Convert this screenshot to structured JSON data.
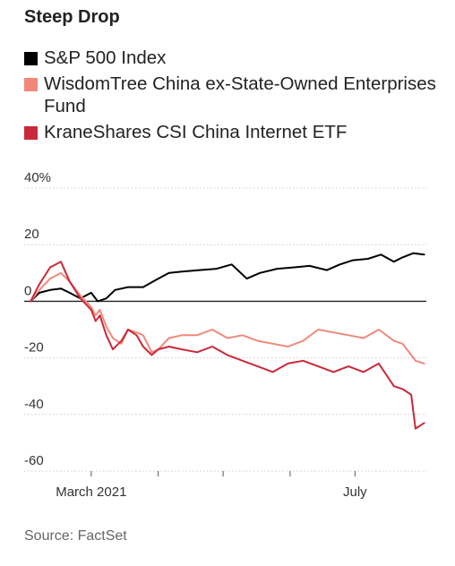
{
  "title": "Steep Drop",
  "source": "Source: FactSet",
  "colors": {
    "sp500": "#000000",
    "wisdomtree": "#f0897a",
    "kraneshares": "#c9293a",
    "grid": "#cccccc",
    "zero": "#222222"
  },
  "legend": [
    {
      "label": "S&P 500 Index",
      "color": "#000000"
    },
    {
      "label": "WisdomTree China ex-State-Owned Enterprises Fund",
      "color": "#f0897a"
    },
    {
      "label": "KraneShares CSI China Internet ETF",
      "color": "#c9293a"
    }
  ],
  "chart_data": {
    "type": "line",
    "title": "Steep Drop",
    "yunit": "%",
    "ylim": [
      -60,
      40
    ],
    "yticks": [
      40,
      20,
      0,
      -20,
      -40,
      -60
    ],
    "ytick_labels": [
      "40%",
      "20",
      "0",
      "-20",
      "-40",
      "-60"
    ],
    "xlim": [
      "2021-01-29",
      "2021-08-03"
    ],
    "xticks": [
      {
        "date": "2021-03-01",
        "label": "March 2021"
      },
      {
        "date": "2021-04-01",
        "label": ""
      },
      {
        "date": "2021-05-01",
        "label": ""
      },
      {
        "date": "2021-06-01",
        "label": ""
      },
      {
        "date": "2021-07-01",
        "label": "July"
      }
    ],
    "grid": true,
    "legend_position": "top",
    "series": [
      {
        "name": "S&P 500 Index",
        "color": "#000000",
        "x": [
          "2021-02-01",
          "2021-02-05",
          "2021-02-10",
          "2021-02-15",
          "2021-02-19",
          "2021-02-24",
          "2021-03-01",
          "2021-03-04",
          "2021-03-08",
          "2021-03-12",
          "2021-03-18",
          "2021-03-25",
          "2021-04-01",
          "2021-04-06",
          "2021-04-12",
          "2021-04-20",
          "2021-04-28",
          "2021-05-05",
          "2021-05-12",
          "2021-05-18",
          "2021-05-26",
          "2021-06-03",
          "2021-06-10",
          "2021-06-18",
          "2021-06-24",
          "2021-06-30",
          "2021-07-07",
          "2021-07-13",
          "2021-07-19",
          "2021-07-23",
          "2021-07-28",
          "2021-08-02"
        ],
        "y": [
          0,
          3,
          4,
          4.5,
          3,
          1,
          3,
          0,
          1,
          4,
          5,
          5,
          8,
          10,
          10.5,
          11,
          11.5,
          13,
          8,
          10,
          11.5,
          12,
          12.5,
          11,
          13,
          14.5,
          15,
          16.5,
          14,
          15.5,
          17,
          16.5
        ]
      },
      {
        "name": "WisdomTree China ex-State-Owned Enterprises Fund",
        "color": "#f0897a",
        "x": [
          "2021-02-01",
          "2021-02-05",
          "2021-02-10",
          "2021-02-15",
          "2021-02-19",
          "2021-02-24",
          "2021-03-01",
          "2021-03-03",
          "2021-03-05",
          "2021-03-08",
          "2021-03-11",
          "2021-03-15",
          "2021-03-18",
          "2021-03-22",
          "2021-03-25",
          "2021-03-29",
          "2021-04-01",
          "2021-04-06",
          "2021-04-12",
          "2021-04-19",
          "2021-04-26",
          "2021-05-03",
          "2021-05-10",
          "2021-05-17",
          "2021-05-24",
          "2021-05-31",
          "2021-06-07",
          "2021-06-14",
          "2021-06-21",
          "2021-06-28",
          "2021-07-05",
          "2021-07-12",
          "2021-07-19",
          "2021-07-23",
          "2021-07-27",
          "2021-07-29",
          "2021-08-02"
        ],
        "y": [
          0,
          4,
          8,
          10,
          7,
          2,
          -2,
          -5,
          -3,
          -9,
          -13,
          -15,
          -10,
          -11,
          -12,
          -18,
          -17,
          -13,
          -12,
          -12,
          -10,
          -13,
          -12,
          -14,
          -15,
          -16,
          -14,
          -10,
          -11,
          -12,
          -13,
          -10,
          -14,
          -15,
          -19,
          -21,
          -22
        ]
      },
      {
        "name": "KraneShares CSI China Internet ETF",
        "color": "#c9293a",
        "x": [
          "2021-02-01",
          "2021-02-05",
          "2021-02-10",
          "2021-02-15",
          "2021-02-19",
          "2021-02-24",
          "2021-03-01",
          "2021-03-03",
          "2021-03-05",
          "2021-03-08",
          "2021-03-11",
          "2021-03-15",
          "2021-03-18",
          "2021-03-22",
          "2021-03-25",
          "2021-03-29",
          "2021-04-01",
          "2021-04-06",
          "2021-04-12",
          "2021-04-19",
          "2021-04-26",
          "2021-05-03",
          "2021-05-10",
          "2021-05-17",
          "2021-05-24",
          "2021-05-31",
          "2021-06-07",
          "2021-06-14",
          "2021-06-21",
          "2021-06-28",
          "2021-07-05",
          "2021-07-12",
          "2021-07-19",
          "2021-07-23",
          "2021-07-27",
          "2021-07-29",
          "2021-08-02"
        ],
        "y": [
          0,
          6,
          12,
          14,
          7,
          1,
          -3,
          -7,
          -5,
          -12,
          -17,
          -14,
          -10,
          -12,
          -16,
          -19,
          -17,
          -16,
          -17,
          -18,
          -16,
          -19,
          -21,
          -23,
          -25,
          -22,
          -21,
          -23,
          -25,
          -23,
          -25,
          -22,
          -30,
          -31,
          -33,
          -45,
          -43
        ]
      }
    ]
  }
}
